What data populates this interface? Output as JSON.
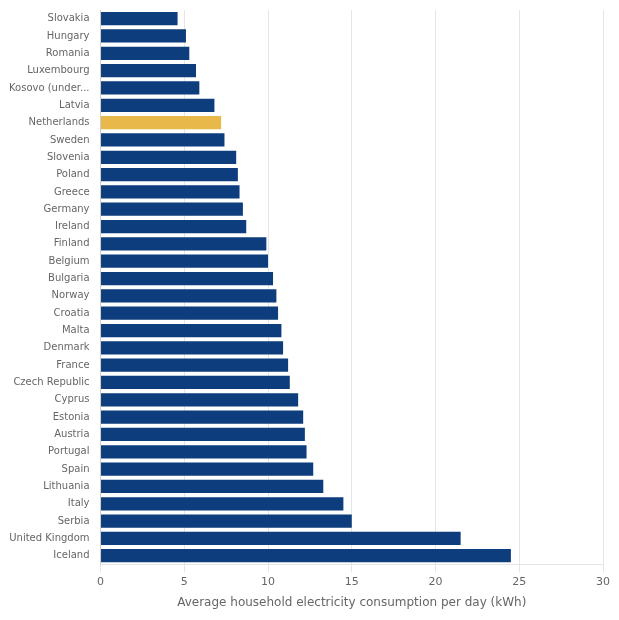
{
  "chart_data": {
    "type": "bar",
    "orientation": "horizontal",
    "categories": [
      "Iceland",
      "United Kingdom",
      "Serbia",
      "Italy",
      "Lithuania",
      "Spain",
      "Portugal",
      "Austria",
      "Estonia",
      "Cyprus",
      "Czech Republic",
      "France",
      "Denmark",
      "Malta",
      "Croatia",
      "Norway",
      "Bulgaria",
      "Belgium",
      "Finland",
      "Ireland",
      "Germany",
      "Greece",
      "Poland",
      "Slovenia",
      "Sweden",
      "Netherlands",
      "Latvia",
      "Kosovo (under...",
      "Luxembourg",
      "Romania",
      "Hungary",
      "Slovakia"
    ],
    "values": [
      24.5,
      21.5,
      15.0,
      14.5,
      13.3,
      12.7,
      12.3,
      12.2,
      12.1,
      11.8,
      11.3,
      11.2,
      10.9,
      10.8,
      10.6,
      10.5,
      10.3,
      10.0,
      9.9,
      8.7,
      8.5,
      8.3,
      8.2,
      8.1,
      7.4,
      7.2,
      6.8,
      5.9,
      5.7,
      5.3,
      5.1,
      4.6
    ],
    "colors": [
      "#0d3d7c",
      "#0d3d7c",
      "#0d3d7c",
      "#0d3d7c",
      "#0d3d7c",
      "#0d3d7c",
      "#0d3d7c",
      "#0d3d7c",
      "#0d3d7c",
      "#0d3d7c",
      "#0d3d7c",
      "#0d3d7c",
      "#0d3d7c",
      "#0d3d7c",
      "#0d3d7c",
      "#0d3d7c",
      "#0d3d7c",
      "#0d3d7c",
      "#0d3d7c",
      "#0d3d7c",
      "#0d3d7c",
      "#0d3d7c",
      "#0d3d7c",
      "#0d3d7c",
      "#0d3d7c",
      "#e8b84b",
      "#0d3d7c",
      "#0d3d7c",
      "#0d3d7c",
      "#0d3d7c",
      "#0d3d7c",
      "#0d3d7c"
    ],
    "xlabel": "Average household electricity consumption per day (kWh)",
    "xlim": [
      0,
      30
    ],
    "xticks": [
      0,
      5,
      10,
      15,
      20,
      25,
      30
    ],
    "grid": true
  }
}
